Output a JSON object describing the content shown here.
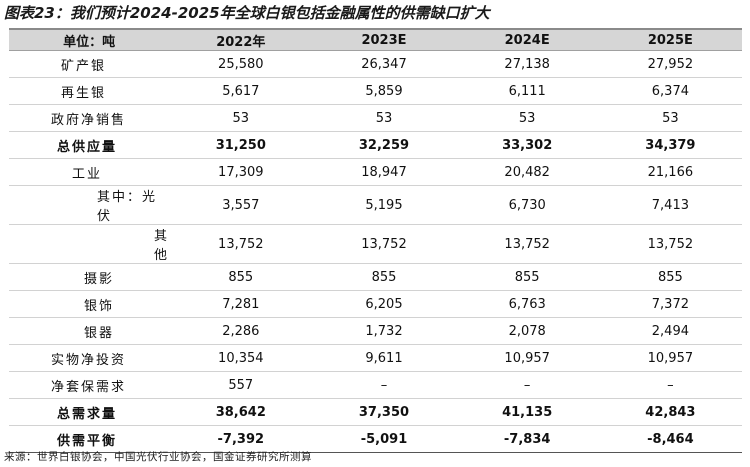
{
  "title": "图表23：我们预计2024-2025年全球白银包括金融属性的供需缺口扩大",
  "table": {
    "headers": [
      "单位：吨",
      "2022年",
      "2023E",
      "2024E",
      "2025E"
    ],
    "rows": [
      {
        "label": "矿产银",
        "values": [
          "25,580",
          "26,347",
          "27,138",
          "27,952"
        ],
        "bold": false,
        "indent": 52
      },
      {
        "label": "再生银",
        "values": [
          "5,617",
          "5,859",
          "6,111",
          "6,374"
        ],
        "bold": false,
        "indent": 52
      },
      {
        "label": "政府净销售",
        "values": [
          "53",
          "53",
          "53",
          "53"
        ],
        "bold": false,
        "indent": 42
      },
      {
        "label": "总供应量",
        "values": [
          "31,250",
          "32,259",
          "33,302",
          "34,379"
        ],
        "bold": true,
        "indent": 48
      },
      {
        "label": "工业",
        "values": [
          "17,309",
          "18,947",
          "20,482",
          "21,166"
        ],
        "bold": false,
        "indent": 63
      },
      {
        "label": "其中：光伏",
        "values": [
          "3,557",
          "5,195",
          "6,730",
          "7,413"
        ],
        "bold": false,
        "indent": 88
      },
      {
        "label": "其他",
        "values": [
          "13,752",
          "13,752",
          "13,752",
          "13,752"
        ],
        "bold": false,
        "indent": 145
      },
      {
        "label": "摄影",
        "values": [
          "855",
          "855",
          "855",
          "855"
        ],
        "bold": false,
        "indent": 75
      },
      {
        "label": "银饰",
        "values": [
          "7,281",
          "6,205",
          "6,763",
          "7,372"
        ],
        "bold": false,
        "indent": 75
      },
      {
        "label": "银器",
        "values": [
          "2,286",
          "1,732",
          "2,078",
          "2,494"
        ],
        "bold": false,
        "indent": 75
      },
      {
        "label": "实物净投资",
        "values": [
          "10,354",
          "9,611",
          "10,957",
          "10,957"
        ],
        "bold": false,
        "indent": 42
      },
      {
        "label": "净套保需求",
        "values": [
          "557",
          "–",
          "–",
          "–"
        ],
        "bold": false,
        "indent": 42
      },
      {
        "label": "总需求量",
        "values": [
          "38,642",
          "37,350",
          "41,135",
          "42,843"
        ],
        "bold": true,
        "indent": 48
      },
      {
        "label": "供需平衡",
        "values": [
          "-7,392",
          "-5,091",
          "-7,834",
          "-8,464"
        ],
        "bold": true,
        "indent": 48
      }
    ]
  },
  "source": "来源：世界白银协会，中国光伏行业协会，国金证券研究所测算"
}
